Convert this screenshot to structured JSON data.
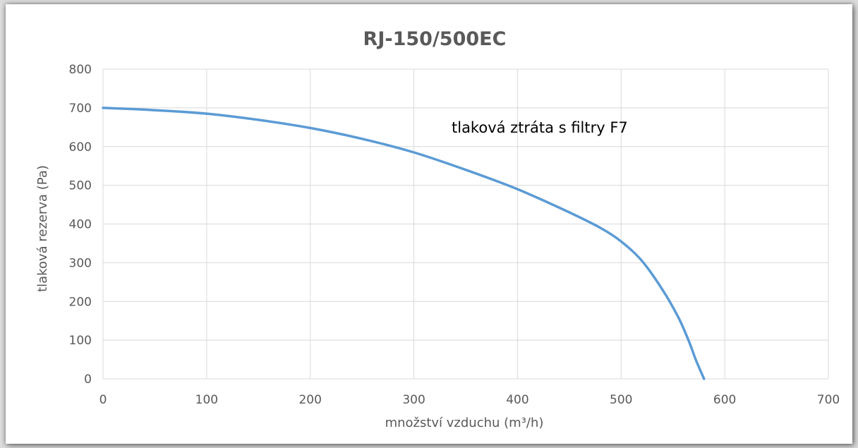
{
  "chart_data": {
    "type": "line",
    "title": "RJ-150/500EC",
    "xlabel": "množství vzduchu (m³/h)",
    "ylabel": "tlaková rezerva (Pa)",
    "annotation": "tlaková ztráta s filtry F7",
    "xlim": [
      0,
      700
    ],
    "ylim": [
      0,
      800
    ],
    "x_ticks": [
      "0",
      "100",
      "200",
      "300",
      "400",
      "500",
      "600",
      "700"
    ],
    "y_ticks": [
      "0",
      "100",
      "200",
      "300",
      "400",
      "500",
      "600",
      "700",
      "800"
    ],
    "grid": true,
    "legend": "none",
    "series": [
      {
        "color": "#5b9bd5",
        "x": [
          0,
          50,
          100,
          150,
          200,
          250,
          300,
          350,
          400,
          450,
          480,
          500,
          520,
          540,
          555,
          565,
          572,
          580
        ],
        "y": [
          700,
          694,
          685,
          669,
          648,
          620,
          585,
          540,
          490,
          430,
          390,
          355,
          305,
          230,
          160,
          100,
          50,
          0
        ]
      }
    ]
  }
}
